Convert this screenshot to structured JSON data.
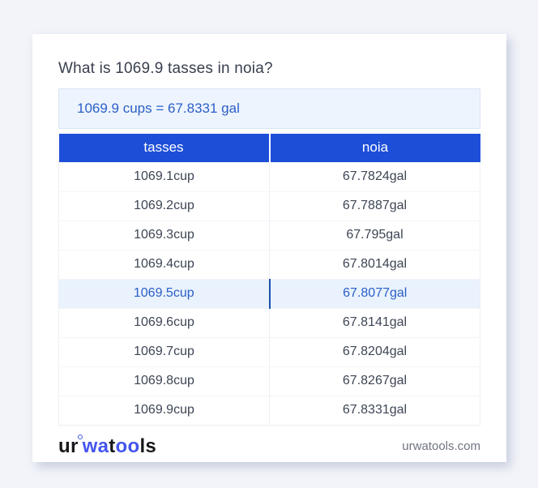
{
  "page": {
    "title": "What is 1069.9 tasses in noia?"
  },
  "result": {
    "text": "1069.9 cups = 67.8331 gal"
  },
  "table": {
    "headers": [
      "tasses",
      "noia"
    ],
    "rows": [
      {
        "from": "1069.1cup",
        "to": "67.7824gal",
        "highlighted": false
      },
      {
        "from": "1069.2cup",
        "to": "67.7887gal",
        "highlighted": false
      },
      {
        "from": "1069.3cup",
        "to": "67.795gal",
        "highlighted": false
      },
      {
        "from": "1069.4cup",
        "to": "67.8014gal",
        "highlighted": false
      },
      {
        "from": "1069.5cup",
        "to": "67.8077gal",
        "highlighted": true
      },
      {
        "from": "1069.6cup",
        "to": "67.8141gal",
        "highlighted": false
      },
      {
        "from": "1069.7cup",
        "to": "67.8204gal",
        "highlighted": false
      },
      {
        "from": "1069.8cup",
        "to": "67.8267gal",
        "highlighted": false
      },
      {
        "from": "1069.9cup",
        "to": "67.8331gal",
        "highlighted": false
      }
    ]
  },
  "footer": {
    "logo": {
      "ur": "ur",
      "wa": "wa",
      "t": "t",
      "oo": "oo",
      "ls": "ls"
    },
    "domain": "urwatools.com"
  },
  "colors": {
    "accent_blue": "#1d4ed8",
    "link_blue": "#2b5fc7",
    "highlight_bg": "#e9f2fd",
    "result_bg": "#edf4fd",
    "page_bg": "#f2f4f9",
    "logo_blue": "#4355ee"
  }
}
